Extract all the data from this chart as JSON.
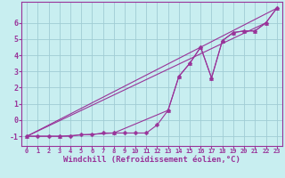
{
  "background_color": "#c8eef0",
  "grid_color": "#a0ccd4",
  "line_color": "#993399",
  "marker_color": "#993399",
  "xlabel": "Windchill (Refroidissement éolien,°C)",
  "xlabel_fontsize": 6.5,
  "xlim": [
    -0.5,
    23.5
  ],
  "ylim": [
    -1.6,
    7.3
  ],
  "xticks": [
    0,
    1,
    2,
    3,
    4,
    5,
    6,
    7,
    8,
    9,
    10,
    11,
    12,
    13,
    14,
    15,
    16,
    17,
    18,
    19,
    20,
    21,
    22,
    23
  ],
  "yticks": [
    -1,
    0,
    1,
    2,
    3,
    4,
    5,
    6
  ],
  "series": {
    "line1": {
      "x": [
        0,
        1,
        2,
        3,
        4,
        5,
        6,
        7,
        8,
        9,
        10,
        11,
        12,
        13,
        14,
        15,
        16,
        17,
        18,
        19,
        20,
        21,
        22,
        23
      ],
      "y": [
        -1,
        -1,
        -1,
        -1,
        -1,
        -0.9,
        -0.9,
        -0.8,
        -0.8,
        -0.8,
        -0.8,
        -0.8,
        -0.3,
        0.6,
        2.7,
        3.5,
        4.5,
        2.6,
        4.9,
        5.4,
        5.5,
        5.5,
        6.0,
        6.9
      ]
    },
    "line2": {
      "x": [
        0,
        3,
        8,
        13,
        14,
        15,
        16,
        17,
        18,
        19,
        20,
        21,
        22,
        23
      ],
      "y": [
        -1,
        -1,
        -0.8,
        0.6,
        2.7,
        3.5,
        4.5,
        2.6,
        4.9,
        5.4,
        5.5,
        5.5,
        6.0,
        6.9
      ]
    },
    "line3": {
      "x": [
        0,
        23
      ],
      "y": [
        -1,
        6.9
      ]
    },
    "line4": {
      "x": [
        0,
        22
      ],
      "y": [
        -1,
        6.0
      ]
    }
  }
}
